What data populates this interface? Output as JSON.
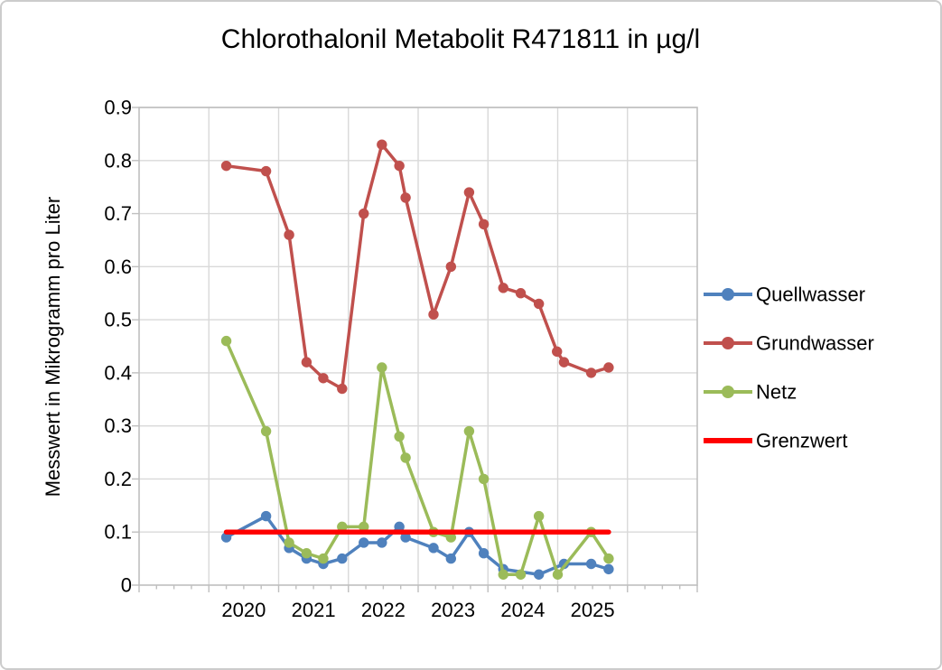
{
  "chart_data": {
    "type": "line",
    "title": "Chlorothalonil Metabolit R471811 in µg/l",
    "ylabel": "Messwert in Mikrogramm pro Liter",
    "xlabel": "",
    "xlim": [
      2019,
      2027
    ],
    "ylim": [
      0,
      0.9
    ],
    "grid": true,
    "legend_position": "right",
    "x_tick_labels": [
      "2020",
      "2021",
      "2022",
      "2023",
      "2024",
      "2025"
    ],
    "y_tick_labels": [
      "0",
      "0.1",
      "0.2",
      "0.3",
      "0.4",
      "0.5",
      "0.6",
      "0.7",
      "0.8",
      "0.9"
    ],
    "colors": {
      "gridline": "#d9d9d9",
      "axis": "#bfbfbf",
      "text": "#000000",
      "quellwasser": "#4F81BD",
      "grundwasser": "#C0504D",
      "netz": "#9BBB59",
      "grenzwert": "#FF0000"
    },
    "series": [
      {
        "name": "Quellwasser",
        "color": "#4F81BD",
        "marker": "circle",
        "x": [
          2020.25,
          2020.82,
          2021.15,
          2021.4,
          2021.64,
          2021.91,
          2022.22,
          2022.48,
          2022.73,
          2022.82,
          2023.22,
          2023.47,
          2023.73,
          2023.94,
          2024.22,
          2024.73,
          2025.09,
          2025.48,
          2025.73
        ],
        "values": [
          0.09,
          0.13,
          0.07,
          0.05,
          0.04,
          0.05,
          0.08,
          0.08,
          0.11,
          0.09,
          0.07,
          0.05,
          0.1,
          0.06,
          0.03,
          0.02,
          0.04,
          0.04,
          0.03
        ]
      },
      {
        "name": "Grundwasser",
        "color": "#C0504D",
        "marker": "circle",
        "x": [
          2020.25,
          2020.82,
          2021.15,
          2021.4,
          2021.64,
          2021.91,
          2022.22,
          2022.48,
          2022.73,
          2022.82,
          2023.22,
          2023.47,
          2023.73,
          2023.94,
          2024.22,
          2024.47,
          2024.73,
          2024.99,
          2025.09,
          2025.48,
          2025.73
        ],
        "values": [
          0.79,
          0.78,
          0.66,
          0.42,
          0.39,
          0.37,
          0.7,
          0.83,
          0.79,
          0.73,
          0.51,
          0.6,
          0.74,
          0.68,
          0.56,
          0.55,
          0.53,
          0.44,
          0.42,
          0.4,
          0.41
        ]
      },
      {
        "name": "Netz",
        "color": "#9BBB59",
        "marker": "circle",
        "x": [
          2020.25,
          2020.82,
          2021.15,
          2021.4,
          2021.64,
          2021.91,
          2022.22,
          2022.48,
          2022.73,
          2022.82,
          2023.22,
          2023.47,
          2023.73,
          2023.94,
          2024.22,
          2024.47,
          2024.73,
          2025.0,
          2025.48,
          2025.73
        ],
        "values": [
          0.46,
          0.29,
          0.08,
          0.06,
          0.05,
          0.11,
          0.11,
          0.41,
          0.28,
          0.24,
          0.1,
          0.09,
          0.29,
          0.2,
          0.02,
          0.02,
          0.13,
          0.02,
          0.1,
          0.05
        ]
      },
      {
        "name": "Grenzwert",
        "color": "#FF0000",
        "marker": "none",
        "x": [
          2020.25,
          2025.73
        ],
        "values": [
          0.1,
          0.1
        ]
      }
    ]
  }
}
